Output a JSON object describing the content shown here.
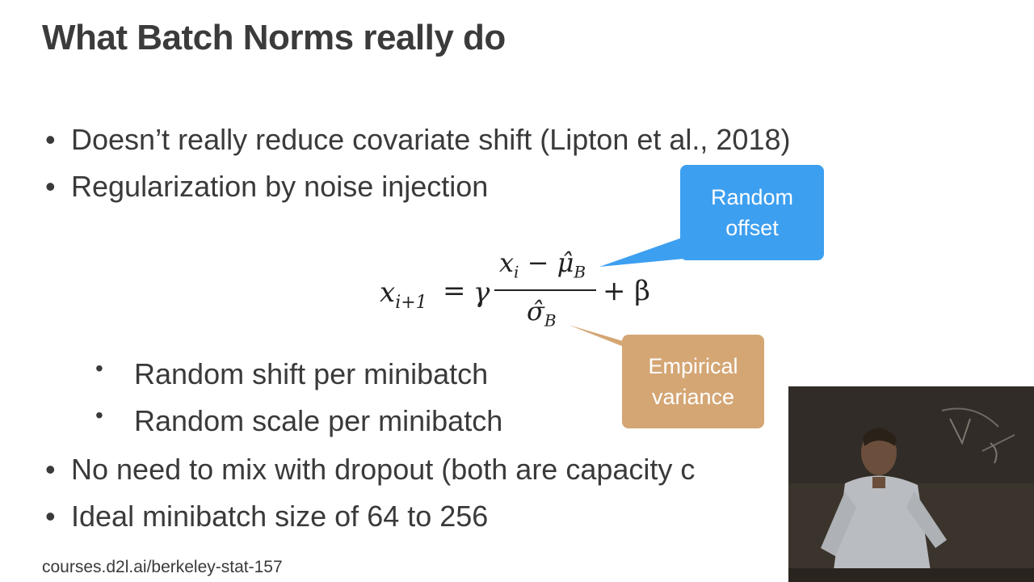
{
  "slide": {
    "title": "What Batch Norms really do",
    "bullets": [
      "Doesn’t really reduce covariate shift (Lipton et al., 2018)",
      "Regularization by noise injection",
      "No need to mix with dropout (both are capacity c",
      "Ideal minibatch size of 64 to 256"
    ],
    "sub_bullets": [
      "Random shift per minibatch",
      "Random scale per minibatch"
    ],
    "bullet_glyph": "•",
    "formula": {
      "lhs_var": "x",
      "lhs_sub": "i+1",
      "equals": "=",
      "gamma": "γ",
      "num_var": "x",
      "num_sub": "i",
      "num_minus": " − μ̂",
      "num_mu_sub": "B",
      "den_sigma": "σ̂",
      "den_sub": "B",
      "plus_beta": "+ β"
    },
    "callouts": {
      "blue_line1": "Random",
      "blue_line2": "offset",
      "tan_line1": "Empirical",
      "tan_line2": "variance",
      "blue_color": "#3d9ff0",
      "tan_color": "#d4a674"
    },
    "footer": "courses.d2l.ai/berkeley-stat-157"
  }
}
